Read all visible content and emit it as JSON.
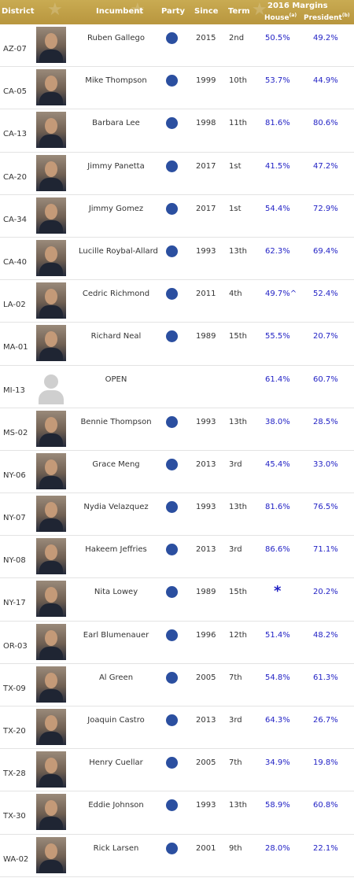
{
  "header": {
    "district": "District",
    "incumbent": "Incumbent",
    "party": "Party",
    "since": "Since",
    "term": "Term",
    "margins": "2016 Margins",
    "house": "House",
    "house_note": "(a)",
    "president": "President",
    "president_note": "(b)"
  },
  "colors": {
    "header_gold": "#c0a04a",
    "party_dot": "#2b4fa0",
    "margin_text": "#1f1fc4"
  },
  "rows": [
    {
      "district": "AZ-07",
      "name": "Ruben Gallego",
      "since": "2015",
      "term": "2nd",
      "house": "50.5%",
      "president": "49.2%"
    },
    {
      "district": "CA-05",
      "name": "Mike Thompson",
      "since": "1999",
      "term": "10th",
      "house": "53.7%",
      "president": "44.9%"
    },
    {
      "district": "CA-13",
      "name": "Barbara Lee",
      "since": "1998",
      "term": "11th",
      "house": "81.6%",
      "president": "80.6%"
    },
    {
      "district": "CA-20",
      "name": "Jimmy Panetta",
      "since": "2017",
      "term": "1st",
      "house": "41.5%",
      "president": "47.2%"
    },
    {
      "district": "CA-34",
      "name": "Jimmy Gomez",
      "since": "2017",
      "term": "1st",
      "house": "54.4%",
      "president": "72.9%"
    },
    {
      "district": "CA-40",
      "name": "Lucille Roybal-Allard",
      "since": "1993",
      "term": "13th",
      "house": "62.3%",
      "president": "69.4%"
    },
    {
      "district": "LA-02",
      "name": "Cedric Richmond",
      "since": "2011",
      "term": "4th",
      "house": "49.7%^",
      "president": "52.4%"
    },
    {
      "district": "MA-01",
      "name": "Richard Neal",
      "since": "1989",
      "term": "15th",
      "house": "55.5%",
      "president": "20.7%"
    },
    {
      "district": "MI-13",
      "name": "OPEN",
      "since": "",
      "term": "",
      "house": "61.4%",
      "president": "60.7%"
    },
    {
      "district": "MS-02",
      "name": "Bennie Thompson",
      "since": "1993",
      "term": "13th",
      "house": "38.0%",
      "president": "28.5%"
    },
    {
      "district": "NY-06",
      "name": "Grace Meng",
      "since": "2013",
      "term": "3rd",
      "house": "45.4%",
      "president": "33.0%"
    },
    {
      "district": "NY-07",
      "name": "Nydia Velazquez",
      "since": "1993",
      "term": "13th",
      "house": "81.6%",
      "president": "76.5%"
    },
    {
      "district": "NY-08",
      "name": "Hakeem Jeffries",
      "since": "2013",
      "term": "3rd",
      "house": "86.6%",
      "president": "71.1%"
    },
    {
      "district": "NY-17",
      "name": "Nita Lowey",
      "since": "1989",
      "term": "15th",
      "house": "*",
      "president": "20.2%"
    },
    {
      "district": "OR-03",
      "name": "Earl Blumenauer",
      "since": "1996",
      "term": "12th",
      "house": "51.4%",
      "president": "48.2%"
    },
    {
      "district": "TX-09",
      "name": "Al Green",
      "since": "2005",
      "term": "7th",
      "house": "54.8%",
      "president": "61.3%"
    },
    {
      "district": "TX-20",
      "name": "Joaquin Castro",
      "since": "2013",
      "term": "3rd",
      "house": "64.3%",
      "president": "26.7%"
    },
    {
      "district": "TX-28",
      "name": "Henry Cuellar",
      "since": "2005",
      "term": "7th",
      "house": "34.9%",
      "president": "19.8%"
    },
    {
      "district": "TX-30",
      "name": "Eddie Johnson",
      "since": "1993",
      "term": "13th",
      "house": "58.9%",
      "president": "60.8%"
    },
    {
      "district": "WA-02",
      "name": "Rick Larsen",
      "since": "2001",
      "term": "9th",
      "house": "28.0%",
      "president": "22.1%"
    }
  ]
}
